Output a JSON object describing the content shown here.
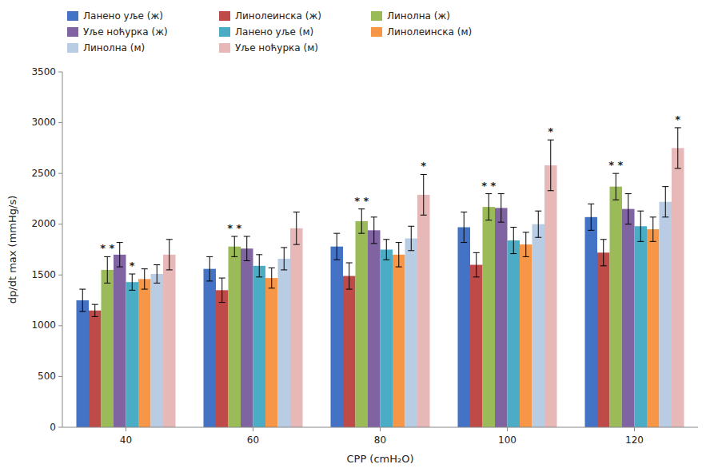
{
  "chart_data": {
    "type": "bar",
    "xlabel": "CPP (cmH₂O)",
    "ylabel": "dp/dt max (mmHg/s)",
    "categories": [
      "40",
      "60",
      "80",
      "100",
      "120"
    ],
    "series": [
      {
        "name": "Ланено уље (ж)",
        "color": "#4472c4",
        "values": [
          1250,
          1560,
          1780,
          1970,
          2070
        ],
        "errors": [
          110,
          120,
          130,
          150,
          130
        ]
      },
      {
        "name": "Линолеинска (ж)",
        "color": "#be4b48",
        "values": [
          1150,
          1350,
          1490,
          1600,
          1720
        ],
        "errors": [
          60,
          120,
          130,
          120,
          130
        ]
      },
      {
        "name": "Линолна (ж)",
        "color": "#9bbb59",
        "values": [
          1550,
          1780,
          2030,
          2170,
          2370
        ],
        "errors": [
          130,
          100,
          120,
          130,
          130
        ]
      },
      {
        "name": "Уље ноћурка (ж)",
        "color": "#8064a2",
        "values": [
          1700,
          1760,
          1940,
          2160,
          2150
        ],
        "errors": [
          120,
          120,
          130,
          140,
          150
        ]
      },
      {
        "name": "Ланено уље (м)",
        "color": "#4bacc6",
        "values": [
          1430,
          1590,
          1750,
          1840,
          1980
        ],
        "errors": [
          80,
          110,
          100,
          130,
          150
        ]
      },
      {
        "name": "Линолеинска (м)",
        "color": "#f79646",
        "values": [
          1460,
          1470,
          1700,
          1800,
          1950
        ],
        "errors": [
          100,
          100,
          120,
          120,
          120
        ]
      },
      {
        "name": "Линолна (м)",
        "color": "#b8cce4",
        "values": [
          1510,
          1660,
          1860,
          2000,
          2220
        ],
        "errors": [
          90,
          110,
          120,
          130,
          150
        ]
      },
      {
        "name": "Уље ноћурка (м)",
        "color": "#e6b9b8",
        "values": [
          1700,
          1960,
          2290,
          2580,
          2750
        ],
        "errors": [
          150,
          160,
          200,
          250,
          200
        ]
      }
    ],
    "annotations": [
      {
        "text": "* *",
        "category": "40",
        "series": "Линолна (ж)"
      },
      {
        "text": "*",
        "category": "40",
        "series": "Ланено уље (м)"
      },
      {
        "text": "* *",
        "category": "60",
        "series": "Линолна (ж)"
      },
      {
        "text": "* *",
        "category": "80",
        "series": "Линолна (ж)"
      },
      {
        "text": "*",
        "category": "80",
        "series": "Уље ноћурка (м)"
      },
      {
        "text": "* *",
        "category": "100",
        "series": "Линолна (ж)"
      },
      {
        "text": "*",
        "category": "100",
        "series": "Уље ноћурка (м)"
      },
      {
        "text": "* *",
        "category": "120",
        "series": "Линолна (ж)"
      },
      {
        "text": "*",
        "category": "120",
        "series": "Уље ноћурка (м)"
      }
    ],
    "ylim": [
      0,
      3500
    ],
    "yticks": [
      0,
      500,
      1000,
      1500,
      2000,
      2500,
      3000,
      3500
    ],
    "grid": false,
    "legend": "upper left"
  }
}
